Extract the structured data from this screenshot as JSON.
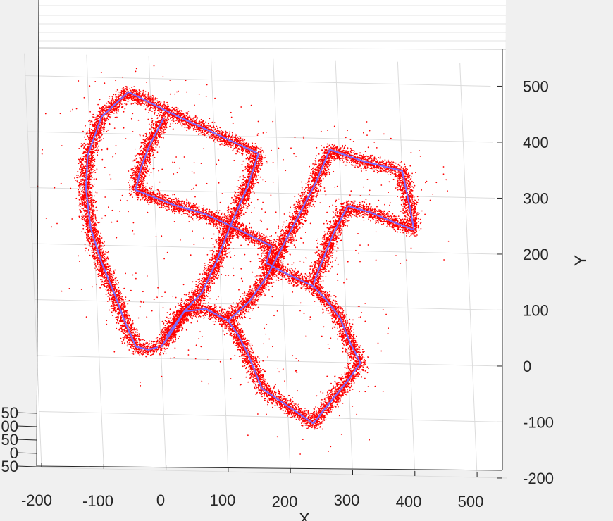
{
  "chart_data": {
    "type": "scatter",
    "title": "",
    "xlabel": "X",
    "ylabel": "Y",
    "xlim": [
      -200,
      550
    ],
    "ylim": [
      -200,
      550
    ],
    "x_ticks": [
      "-200",
      "-100",
      "0",
      "100",
      "200",
      "300",
      "400",
      "500"
    ],
    "y_ticks": [
      "-200",
      "-100",
      "0",
      "100",
      "200",
      "300",
      "400",
      "500"
    ],
    "z_ticks_partial": [
      "50",
      "00",
      "50",
      "0",
      "50"
    ],
    "grid": true,
    "colors": {
      "scatter": "#ff0000",
      "trajectory": "#7a6bff",
      "grid": "#dcdcdc",
      "axes": "#262626"
    },
    "series": [
      {
        "name": "",
        "style": "scatter-dense",
        "color": "#ff0000",
        "segments": [
          [
            [
              -35,
              475
            ],
            [
              -80,
              430
            ],
            [
              -105,
              360
            ],
            [
              -110,
              300
            ],
            [
              -105,
              230
            ],
            [
              -90,
              170
            ],
            [
              -70,
              110
            ],
            [
              -55,
              60
            ],
            [
              -40,
              20
            ],
            [
              -20,
              15
            ],
            [
              -5,
              20
            ]
          ],
          [
            [
              -35,
              475
            ],
            [
              30,
              440
            ],
            [
              100,
              405
            ],
            [
              170,
              370
            ]
          ],
          [
            [
              20,
              430
            ],
            [
              -5,
              380
            ],
            [
              -20,
              340
            ],
            [
              -30,
              300
            ]
          ],
          [
            [
              -30,
              300
            ],
            [
              30,
              275
            ],
            [
              80,
              260
            ],
            [
              130,
              235
            ],
            [
              185,
              205
            ]
          ],
          [
            [
              170,
              370
            ],
            [
              150,
              310
            ],
            [
              120,
              240
            ],
            [
              95,
              175
            ],
            [
              70,
              120
            ],
            [
              40,
              85
            ],
            [
              20,
              50
            ],
            [
              0,
              20
            ]
          ],
          [
            [
              10,
              40
            ],
            [
              40,
              85
            ],
            [
              75,
              90
            ],
            [
              110,
              70
            ],
            [
              125,
              45
            ],
            [
              140,
              10
            ],
            [
              150,
              -20
            ],
            [
              160,
              -50
            ]
          ],
          [
            [
              160,
              -50
            ],
            [
              200,
              -80
            ],
            [
              240,
              -110
            ],
            [
              270,
              -70
            ],
            [
              300,
              -30
            ],
            [
              320,
              0
            ],
            [
              305,
              35
            ],
            [
              290,
              80
            ],
            [
              270,
              110
            ],
            [
              250,
              135
            ]
          ],
          [
            [
              250,
              135
            ],
            [
              200,
              160
            ],
            [
              175,
              175
            ],
            [
              185,
              205
            ]
          ],
          [
            [
              110,
              70
            ],
            [
              145,
              105
            ],
            [
              175,
              150
            ],
            [
              200,
              200
            ],
            [
              230,
              260
            ],
            [
              260,
              320
            ],
            [
              285,
              380
            ]
          ],
          [
            [
              285,
              380
            ],
            [
              340,
              360
            ],
            [
              400,
              345
            ],
            [
              410,
              280
            ],
            [
              415,
              240
            ],
            [
              390,
              250
            ],
            [
              345,
              270
            ],
            [
              310,
              280
            ]
          ],
          [
            [
              310,
              280
            ],
            [
              285,
              230
            ],
            [
              265,
              180
            ],
            [
              250,
              140
            ]
          ]
        ]
      },
      {
        "name": "",
        "style": "line",
        "color": "#7a6bff",
        "segments": [
          [
            [
              -35,
              475
            ],
            [
              -80,
              430
            ],
            [
              -105,
              360
            ],
            [
              -110,
              300
            ],
            [
              -105,
              230
            ],
            [
              -90,
              170
            ],
            [
              -70,
              110
            ],
            [
              -55,
              60
            ],
            [
              -40,
              20
            ],
            [
              -20,
              15
            ],
            [
              -5,
              20
            ]
          ],
          [
            [
              -35,
              475
            ],
            [
              30,
              440
            ],
            [
              100,
              405
            ],
            [
              170,
              370
            ]
          ],
          [
            [
              20,
              430
            ],
            [
              -5,
              380
            ],
            [
              -20,
              340
            ],
            [
              -30,
              300
            ]
          ],
          [
            [
              -30,
              300
            ],
            [
              30,
              275
            ],
            [
              80,
              260
            ],
            [
              130,
              235
            ],
            [
              185,
              205
            ]
          ],
          [
            [
              170,
              370
            ],
            [
              150,
              310
            ],
            [
              120,
              240
            ],
            [
              95,
              175
            ],
            [
              70,
              120
            ],
            [
              40,
              85
            ],
            [
              20,
              50
            ],
            [
              0,
              20
            ]
          ],
          [
            [
              10,
              40
            ],
            [
              40,
              85
            ],
            [
              75,
              90
            ],
            [
              110,
              70
            ],
            [
              125,
              45
            ],
            [
              140,
              10
            ],
            [
              150,
              -20
            ],
            [
              160,
              -50
            ]
          ],
          [
            [
              160,
              -50
            ],
            [
              200,
              -80
            ],
            [
              240,
              -110
            ],
            [
              270,
              -70
            ],
            [
              300,
              -30
            ],
            [
              320,
              0
            ],
            [
              305,
              35
            ],
            [
              290,
              80
            ],
            [
              270,
              110
            ],
            [
              250,
              135
            ]
          ],
          [
            [
              250,
              135
            ],
            [
              200,
              160
            ],
            [
              175,
              175
            ],
            [
              185,
              205
            ]
          ],
          [
            [
              110,
              70
            ],
            [
              145,
              105
            ],
            [
              175,
              150
            ],
            [
              200,
              200
            ],
            [
              230,
              260
            ],
            [
              260,
              320
            ],
            [
              285,
              380
            ]
          ],
          [
            [
              285,
              380
            ],
            [
              340,
              360
            ],
            [
              400,
              345
            ],
            [
              410,
              280
            ],
            [
              415,
              240
            ],
            [
              390,
              250
            ],
            [
              345,
              270
            ],
            [
              310,
              280
            ]
          ],
          [
            [
              310,
              280
            ],
            [
              285,
              230
            ],
            [
              265,
              180
            ],
            [
              250,
              140
            ]
          ]
        ]
      }
    ]
  }
}
